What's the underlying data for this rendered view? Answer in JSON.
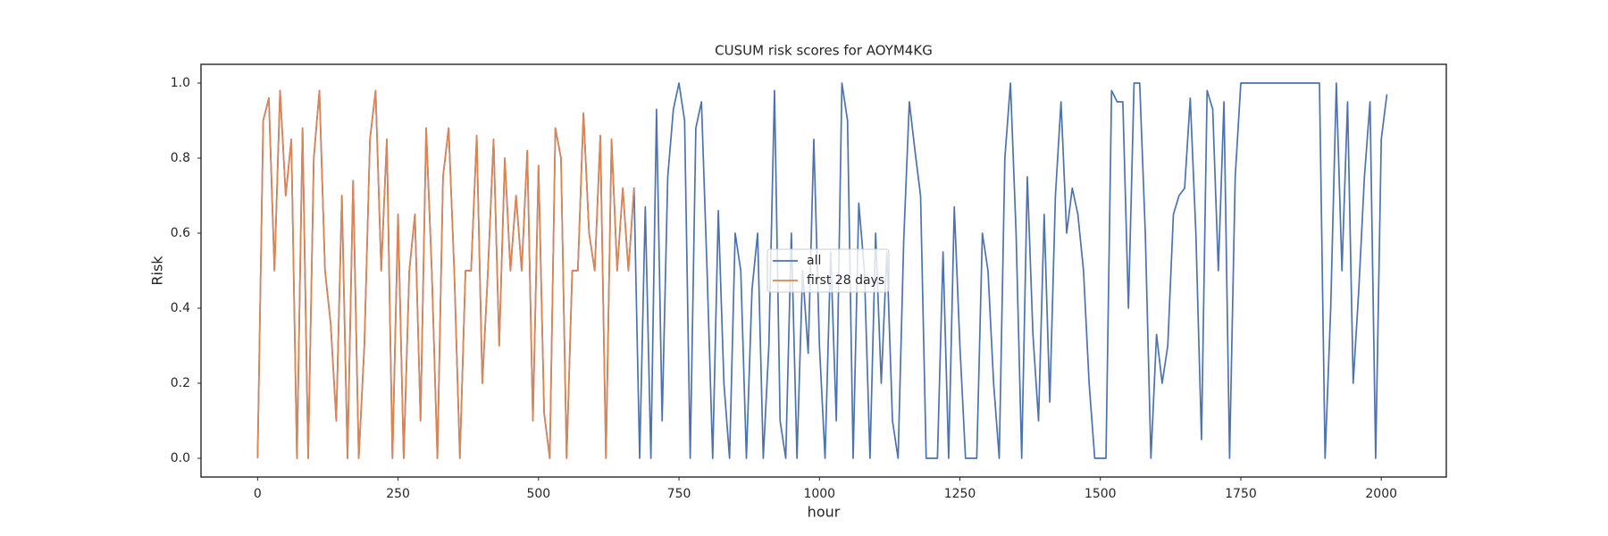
{
  "chart_data": {
    "type": "line",
    "title": "CUSUM risk scores for AOYM4KG",
    "xlabel": "hour",
    "ylabel": "Risk",
    "xlim": [
      -100.75,
      2115.75
    ],
    "xticks": [
      0,
      250,
      500,
      750,
      1000,
      1250,
      1500,
      1750,
      2000
    ],
    "ylim": [
      -0.05,
      1.05
    ],
    "yticks": [
      {
        "value": 0,
        "label": "0.0"
      },
      0.2,
      0.4,
      0.6,
      0.8,
      {
        "value": 1,
        "label": "1.0"
      }
    ],
    "grid": false,
    "legend": "center",
    "series": [
      {
        "name": "all",
        "color": "#4c72b0",
        "x": [
          0,
          10,
          20,
          30,
          40,
          50,
          60,
          70,
          80,
          90,
          100,
          110,
          120,
          130,
          140,
          150,
          160,
          170,
          180,
          190,
          200,
          210,
          220,
          230,
          240,
          250,
          260,
          270,
          280,
          290,
          300,
          310,
          320,
          330,
          340,
          350,
          360,
          370,
          380,
          390,
          400,
          410,
          420,
          430,
          440,
          450,
          460,
          470,
          480,
          490,
          500,
          510,
          520,
          530,
          540,
          550,
          560,
          570,
          580,
          590,
          600,
          610,
          620,
          630,
          640,
          650,
          660,
          670,
          680,
          690,
          700,
          710,
          720,
          730,
          740,
          750,
          760,
          770,
          780,
          790,
          800,
          810,
          820,
          830,
          840,
          850,
          860,
          870,
          880,
          890,
          900,
          910,
          920,
          930,
          940,
          950,
          960,
          970,
          980,
          990,
          1000,
          1010,
          1020,
          1030,
          1040,
          1050,
          1060,
          1070,
          1080,
          1090,
          1100,
          1110,
          1120,
          1130,
          1140,
          1150,
          1160,
          1170,
          1180,
          1190,
          1200,
          1210,
          1220,
          1230,
          1240,
          1250,
          1260,
          1270,
          1280,
          1290,
          1300,
          1310,
          1320,
          1330,
          1340,
          1350,
          1360,
          1370,
          1380,
          1390,
          1400,
          1410,
          1420,
          1430,
          1440,
          1450,
          1460,
          1470,
          1480,
          1490,
          1500,
          1510,
          1520,
          1530,
          1540,
          1550,
          1560,
          1570,
          1580,
          1590,
          1600,
          1610,
          1620,
          1630,
          1640,
          1650,
          1660,
          1670,
          1680,
          1690,
          1700,
          1710,
          1720,
          1730,
          1740,
          1750,
          1760,
          1770,
          1780,
          1790,
          1800,
          1810,
          1820,
          1830,
          1840,
          1850,
          1860,
          1870,
          1880,
          1890,
          1900,
          1910,
          1920,
          1930,
          1940,
          1950,
          1960,
          1970,
          1980,
          1990,
          2000,
          2010
        ],
        "values": [
          0,
          0.9,
          0.96,
          0.5,
          0.98,
          0.7,
          0.85,
          0,
          0.88,
          0,
          0.8,
          0.98,
          0.5,
          0.36,
          0.1,
          0.7,
          0,
          0.74,
          0,
          0.3,
          0.85,
          0.98,
          0.5,
          0.85,
          0,
          0.65,
          0,
          0.5,
          0.65,
          0.1,
          0.88,
          0.5,
          0,
          0.75,
          0.88,
          0.5,
          0,
          0.5,
          0.5,
          0.86,
          0.2,
          0.5,
          0.85,
          0.3,
          0.8,
          0.5,
          0.7,
          0.5,
          0.82,
          0.1,
          0.78,
          0.12,
          0,
          0.88,
          0.8,
          0,
          0.5,
          0.5,
          0.92,
          0.6,
          0.5,
          0.86,
          0,
          0.85,
          0.5,
          0.72,
          0.5,
          0.72,
          0,
          0.67,
          0,
          0.93,
          0.1,
          0.75,
          0.93,
          1.0,
          0.9,
          0,
          0.88,
          0.95,
          0.5,
          0,
          0.66,
          0.2,
          0,
          0.6,
          0.5,
          0,
          0.45,
          0.6,
          0,
          0.3,
          0.98,
          0.1,
          0,
          0.6,
          0,
          0.5,
          0.28,
          0.85,
          0.3,
          0,
          0.55,
          0.1,
          1.0,
          0.9,
          0,
          0.68,
          0.5,
          0,
          0.6,
          0.2,
          0.55,
          0.1,
          0,
          0.58,
          0.95,
          0.82,
          0.7,
          0,
          0,
          0,
          0.55,
          0,
          0.67,
          0.3,
          0,
          0,
          0,
          0.6,
          0.5,
          0.2,
          0,
          0.8,
          1.0,
          0.6,
          0,
          0.75,
          0.33,
          0.1,
          0.65,
          0.15,
          0.7,
          0.95,
          0.6,
          0.72,
          0.65,
          0.5,
          0.2,
          0,
          0,
          0,
          0.98,
          0.95,
          0.95,
          0.4,
          1.0,
          1.0,
          0.6,
          0,
          0.33,
          0.2,
          0.3,
          0.65,
          0.7,
          0.72,
          0.96,
          0.6,
          0.05,
          0.98,
          0.93,
          0.5,
          0.95,
          0,
          0.75,
          1.0,
          1.0,
          1.0,
          1,
          1,
          1,
          1,
          1,
          1,
          1,
          1,
          1,
          1,
          1,
          1,
          0,
          0.4,
          1.0,
          0.5,
          0.95,
          0.2,
          0.45,
          0.75,
          0.95,
          0,
          0.85,
          0.97
        ]
      },
      {
        "name": "first 28 days",
        "color": "#dd8452",
        "x": [
          0,
          10,
          20,
          30,
          40,
          50,
          60,
          70,
          80,
          90,
          100,
          110,
          120,
          130,
          140,
          150,
          160,
          170,
          180,
          190,
          200,
          210,
          220,
          230,
          240,
          250,
          260,
          270,
          280,
          290,
          300,
          310,
          320,
          330,
          340,
          350,
          360,
          370,
          380,
          390,
          400,
          410,
          420,
          430,
          440,
          450,
          460,
          470,
          480,
          490,
          500,
          510,
          520,
          530,
          540,
          550,
          560,
          570,
          580,
          590,
          600,
          610,
          620,
          630,
          640,
          650,
          660,
          670
        ],
        "values": [
          0,
          0.9,
          0.96,
          0.5,
          0.98,
          0.7,
          0.85,
          0,
          0.88,
          0,
          0.8,
          0.98,
          0.5,
          0.36,
          0.1,
          0.7,
          0,
          0.74,
          0,
          0.3,
          0.85,
          0.98,
          0.5,
          0.85,
          0,
          0.65,
          0,
          0.5,
          0.65,
          0.1,
          0.88,
          0.5,
          0,
          0.75,
          0.88,
          0.5,
          0,
          0.5,
          0.5,
          0.86,
          0.2,
          0.5,
          0.85,
          0.3,
          0.8,
          0.5,
          0.7,
          0.5,
          0.82,
          0.1,
          0.78,
          0.12,
          0,
          0.88,
          0.8,
          0,
          0.5,
          0.5,
          0.92,
          0.6,
          0.5,
          0.86,
          0,
          0.85,
          0.5,
          0.72,
          0.5,
          0.72
        ]
      }
    ]
  }
}
